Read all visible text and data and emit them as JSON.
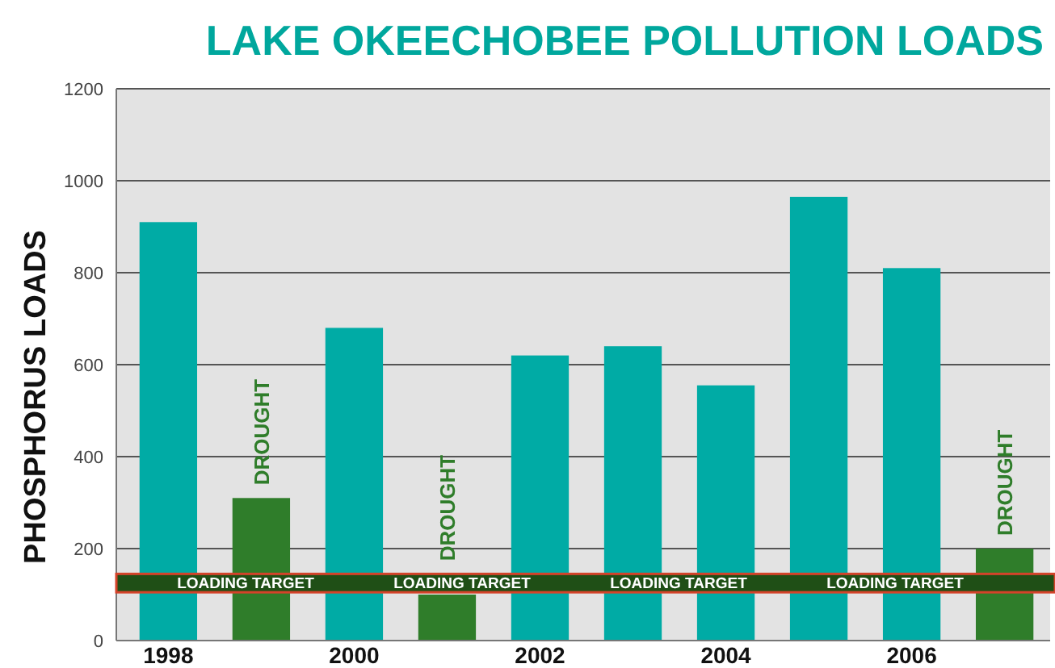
{
  "chart_data": {
    "type": "bar",
    "title": "LAKE OKEECHOBEE POLLUTION LOADS",
    "ylabel": "PHOSPHORUS LOADS",
    "categories": [
      "1998",
      null,
      "2000",
      null,
      "2002",
      null,
      "2004",
      null,
      "2006",
      null
    ],
    "values": [
      910,
      310,
      680,
      100,
      620,
      640,
      555,
      965,
      810,
      200
    ],
    "colors": [
      "#00aba5",
      "#2f7d2a",
      "#00aba5",
      "#2f7d2a",
      "#00aba5",
      "#00aba5",
      "#00aba5",
      "#00aba5",
      "#00aba5",
      "#2f7d2a"
    ],
    "value_labels": [
      null,
      "DROUGHT",
      null,
      "DROUGHT",
      null,
      null,
      null,
      null,
      null,
      "DROUGHT"
    ],
    "ylim": [
      0,
      1200
    ],
    "yticks": [
      0,
      200,
      400,
      600,
      800,
      1000,
      1200
    ],
    "grid": "y",
    "bands": [
      {
        "axis": "y",
        "from": 105,
        "to": 145,
        "label": "LOADING TARGET",
        "color": "#1f4f16"
      }
    ],
    "annotations": [
      "LOADING TARGET",
      "LOADING TARGET",
      "LOADING TARGET"
    ]
  }
}
